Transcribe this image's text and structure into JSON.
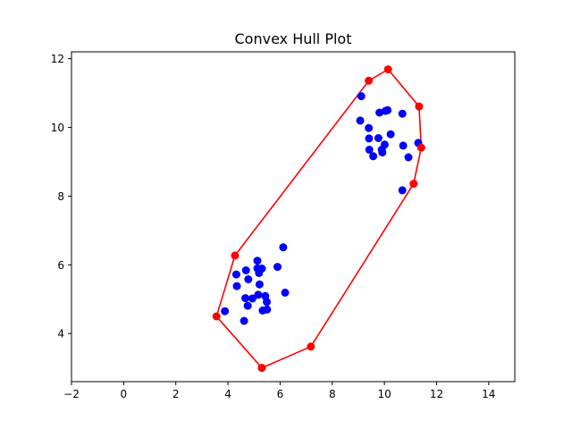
{
  "chart_data": {
    "type": "scatter",
    "title": "Convex Hull Plot",
    "xlabel": "",
    "ylabel": "",
    "xlim": [
      -2,
      15
    ],
    "ylim": [
      2.6,
      12.2
    ],
    "xticks": [
      -2,
      0,
      2,
      4,
      6,
      8,
      10,
      12,
      14
    ],
    "yticks": [
      4,
      6,
      8,
      10,
      12
    ],
    "grid": false,
    "series": [
      {
        "kind": "points",
        "color": "#0000ff",
        "points": [
          [
            3.88,
            4.65
          ],
          [
            4.62,
            4.37
          ],
          [
            4.76,
            4.81
          ],
          [
            4.67,
            5.03
          ],
          [
            4.94,
            5.02
          ],
          [
            4.34,
            5.38
          ],
          [
            4.32,
            5.72
          ],
          [
            4.69,
            5.84
          ],
          [
            4.78,
            5.58
          ],
          [
            5.13,
            6.12
          ],
          [
            5.13,
            5.9
          ],
          [
            5.3,
            5.89
          ],
          [
            5.19,
            5.76
          ],
          [
            5.21,
            5.43
          ],
          [
            5.16,
            5.13
          ],
          [
            5.43,
            5.09
          ],
          [
            5.49,
            4.92
          ],
          [
            5.33,
            4.67
          ],
          [
            5.5,
            4.7
          ],
          [
            5.9,
            5.94
          ],
          [
            6.12,
            6.51
          ],
          [
            6.19,
            5.19
          ],
          [
            9.11,
            10.91
          ],
          [
            9.07,
            10.2
          ],
          [
            9.4,
            9.98
          ],
          [
            9.41,
            9.68
          ],
          [
            9.42,
            9.35
          ],
          [
            9.57,
            9.16
          ],
          [
            9.81,
            10.43
          ],
          [
            10.04,
            10.48
          ],
          [
            10.12,
            10.5
          ],
          [
            10.69,
            10.4
          ],
          [
            9.77,
            9.69
          ],
          [
            9.9,
            9.35
          ],
          [
            9.92,
            9.27
          ],
          [
            10.01,
            9.5
          ],
          [
            10.24,
            9.8
          ],
          [
            10.72,
            9.47
          ],
          [
            10.92,
            9.13
          ],
          [
            11.3,
            9.55
          ],
          [
            10.69,
            8.17
          ]
        ]
      },
      {
        "kind": "hull",
        "color": "#ff0000",
        "points": [
          [
            5.3,
            3.0
          ],
          [
            7.18,
            3.62
          ],
          [
            11.12,
            8.36
          ],
          [
            11.41,
            9.41
          ],
          [
            11.33,
            10.61
          ],
          [
            10.14,
            11.69
          ],
          [
            9.4,
            11.36
          ],
          [
            4.27,
            6.27
          ],
          [
            3.56,
            4.5
          ],
          [
            5.3,
            3.0
          ]
        ]
      }
    ]
  }
}
